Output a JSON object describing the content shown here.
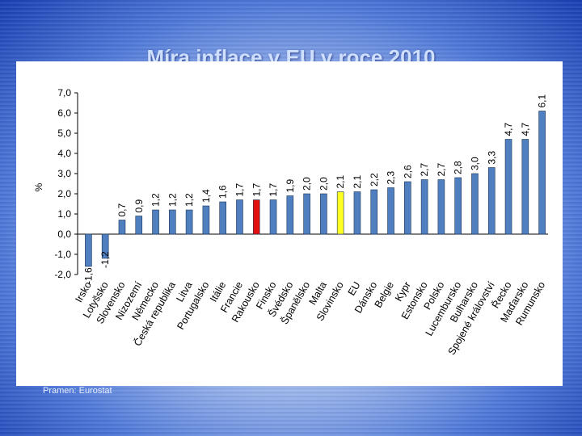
{
  "slide": {
    "title": "Míra inflace v EU v roce 2010",
    "source": "Pramen: Eurostat"
  },
  "colors": {
    "bar_default": "#4f7fbf",
    "bar_highlight_red": "#e01010",
    "bar_highlight_yellow": "#ffff22"
  },
  "chart_data": {
    "type": "bar",
    "title": "",
    "xlabel": "",
    "ylabel": "%",
    "ylim": [
      -2.0,
      7.0
    ],
    "yticks": [
      "-2,0",
      "-1,0",
      "0,0",
      "1,0",
      "2,0",
      "3,0",
      "4,0",
      "5,0",
      "6,0",
      "7,0"
    ],
    "ytick_values": [
      -2,
      -1,
      0,
      1,
      2,
      3,
      4,
      5,
      6,
      7
    ],
    "grid": false,
    "categories": [
      "Irsko",
      "Lotyšsko",
      "Slovensko",
      "Nizozemí",
      "Německo",
      "Česká republika",
      "Litva",
      "Portugalsko",
      "Itálie",
      "Francie",
      "Rakousko",
      "Finsko",
      "Švédsko",
      "Španělsko",
      "Malta",
      "Slovinsko",
      "EU",
      "Dánsko",
      "Belgie",
      "Kypr",
      "Estonsko",
      "Polsko",
      "Lucembursko",
      "Bulharsko",
      "Spojené království",
      "Řecko",
      "Maďarsko",
      "Rumunsko"
    ],
    "values": [
      -1.6,
      -1.2,
      0.7,
      0.9,
      1.2,
      1.2,
      1.2,
      1.4,
      1.6,
      1.7,
      1.7,
      1.7,
      1.9,
      2.0,
      2.0,
      2.1,
      2.1,
      2.2,
      2.3,
      2.6,
      2.7,
      2.7,
      2.8,
      3.0,
      3.3,
      4.7,
      4.7,
      6.1
    ],
    "value_labels": [
      "-1,6",
      "-1,2",
      "0,7",
      "0,9",
      "1,2",
      "1,2",
      "1,2",
      "1,4",
      "1,6",
      "1,7",
      "1,7",
      "1,7",
      "1,9",
      "2,0",
      "2,0",
      "2,1",
      "2,1",
      "2,2",
      "2,3",
      "2,6",
      "2,7",
      "2,7",
      "2,8",
      "3,0",
      "3,3",
      "4,7",
      "4,7",
      "6,1"
    ],
    "highlights": {
      "Rakousko": "red",
      "Slovinsko": "yellow"
    }
  }
}
